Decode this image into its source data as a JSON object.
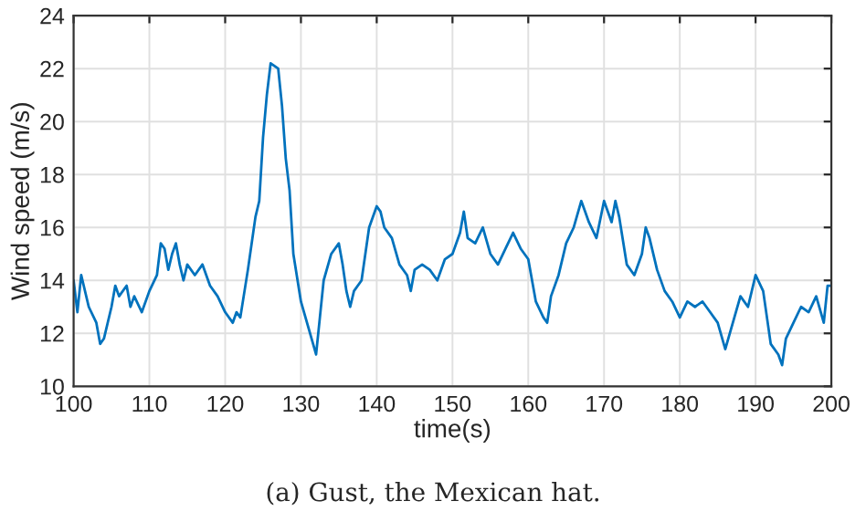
{
  "chart_data": {
    "type": "line",
    "xlabel": "time(s)",
    "ylabel": "Wind speed (m/s)",
    "annotations": [
      "(a) Gust, the Mexican hat."
    ],
    "xlim": [
      100,
      200
    ],
    "ylim": [
      10,
      24
    ],
    "xticks": [
      100,
      110,
      120,
      130,
      140,
      150,
      160,
      170,
      180,
      190,
      200
    ],
    "yticks": [
      10,
      12,
      14,
      16,
      18,
      20,
      22,
      24
    ],
    "grid": true,
    "series": [
      {
        "color": "#0072bd",
        "x": [
          100,
          100.5,
          101,
          102,
          103,
          103.5,
          104,
          105,
          105.5,
          106,
          107,
          107.5,
          108,
          109,
          110,
          111,
          111.5,
          112,
          112.5,
          113,
          113.5,
          114,
          114.5,
          115,
          116,
          117,
          118,
          119,
          120,
          121,
          121.5,
          122,
          123,
          124,
          124.5,
          125,
          125.5,
          126,
          127,
          127.5,
          128,
          128.5,
          129,
          130,
          131,
          132,
          132.5,
          133,
          134,
          135,
          135.5,
          136,
          136.5,
          137,
          138,
          139,
          140,
          140.5,
          141,
          142,
          143,
          144,
          144.5,
          145,
          146,
          147,
          148,
          149,
          150,
          151,
          151.5,
          152,
          153,
          154,
          155,
          156,
          157,
          158,
          159,
          160,
          161,
          162,
          162.5,
          163,
          164,
          165,
          166,
          167,
          167.5,
          168,
          169,
          170,
          171,
          171.5,
          172,
          173,
          174,
          175,
          175.5,
          176,
          177,
          178,
          179,
          180,
          181,
          182,
          183,
          184,
          185,
          186,
          187,
          188,
          189,
          190,
          191,
          192,
          193,
          193.5,
          194,
          195,
          196,
          197,
          198,
          199,
          199.5,
          200
        ],
        "values": [
          14.0,
          12.8,
          14.2,
          13.0,
          12.4,
          11.6,
          11.8,
          13.0,
          13.8,
          13.4,
          13.8,
          13.0,
          13.4,
          12.8,
          13.6,
          14.2,
          15.4,
          15.2,
          14.4,
          15.0,
          15.4,
          14.6,
          14.0,
          14.6,
          14.2,
          14.6,
          13.8,
          13.4,
          12.8,
          12.4,
          12.8,
          12.6,
          14.4,
          16.4,
          17.0,
          19.4,
          21.0,
          22.2,
          22.0,
          20.6,
          18.6,
          17.4,
          15.0,
          13.2,
          12.2,
          11.2,
          12.6,
          14.0,
          15.0,
          15.4,
          14.6,
          13.6,
          13.0,
          13.6,
          14.0,
          16.0,
          16.8,
          16.6,
          16.0,
          15.6,
          14.6,
          14.2,
          13.6,
          14.4,
          14.6,
          14.4,
          14.0,
          14.8,
          15.0,
          15.8,
          16.6,
          15.6,
          15.4,
          16.0,
          15.0,
          14.6,
          15.2,
          15.8,
          15.2,
          14.8,
          13.2,
          12.6,
          12.4,
          13.4,
          14.2,
          15.4,
          16.0,
          17.0,
          16.6,
          16.2,
          15.6,
          17.0,
          16.2,
          17.0,
          16.4,
          14.6,
          14.2,
          15.0,
          16.0,
          15.6,
          14.4,
          13.6,
          13.2,
          12.6,
          13.2,
          13.0,
          13.2,
          12.8,
          12.4,
          11.4,
          12.4,
          13.4,
          13.0,
          14.2,
          13.6,
          11.6,
          11.2,
          10.8,
          11.8,
          12.4,
          13.0,
          12.8,
          13.4,
          12.4,
          13.8,
          13.8
        ]
      }
    ]
  }
}
